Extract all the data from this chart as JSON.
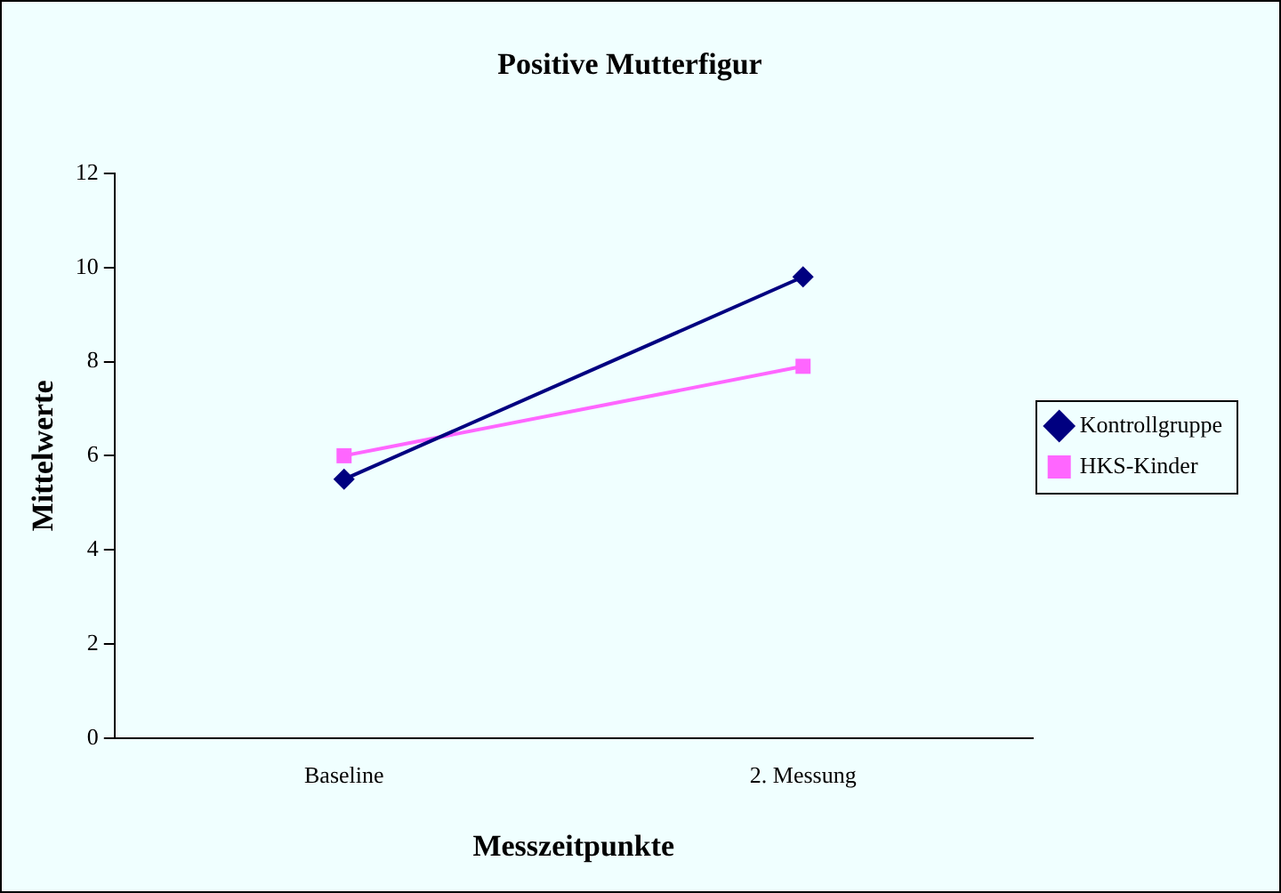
{
  "chart_data": {
    "type": "line",
    "title": "Positive Mutterfigur",
    "xlabel": "Messzeitpunkte",
    "ylabel": "Mittelwerte",
    "categories": [
      "Baseline",
      "2. Messung"
    ],
    "series": [
      {
        "name": "Kontrollgruppe",
        "color": "#000080",
        "values": [
          5.5,
          9.8
        ],
        "marker": "diamond"
      },
      {
        "name": "HKS-Kinder",
        "color": "#ff66ff",
        "values": [
          6.0,
          7.9
        ],
        "marker": "square"
      }
    ],
    "ylim": [
      0,
      12
    ],
    "yticks": [
      0,
      2,
      4,
      6,
      8,
      10,
      12
    ],
    "grid": false,
    "legend": "right"
  }
}
